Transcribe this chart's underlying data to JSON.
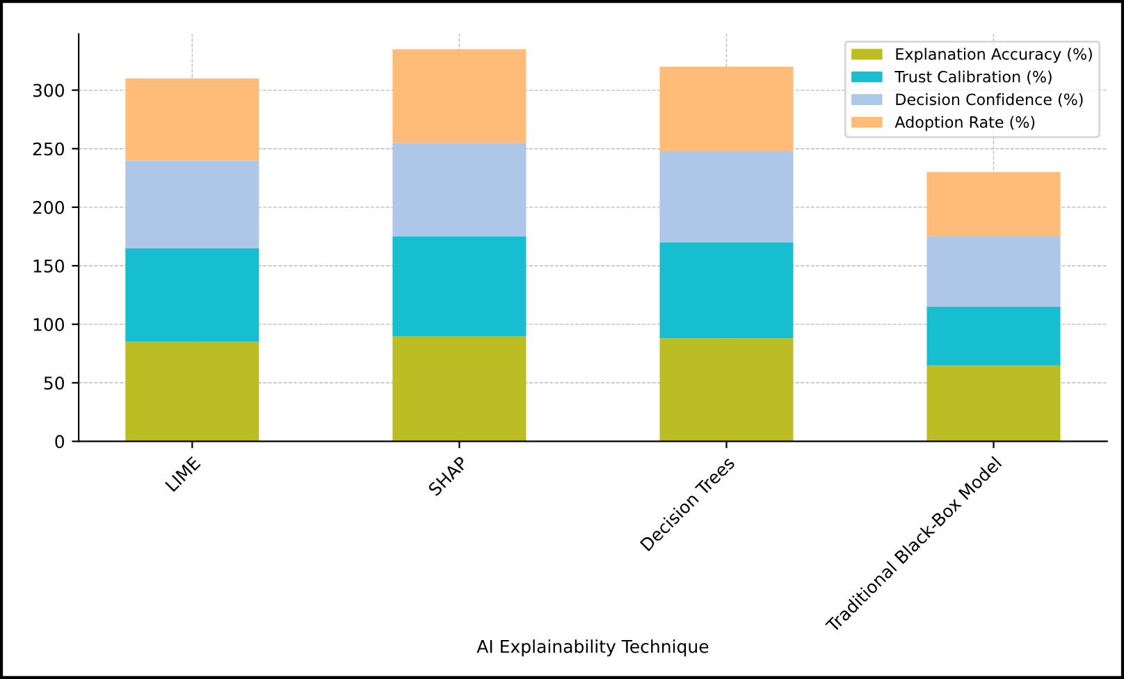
{
  "chart_data": {
    "type": "bar",
    "stacked": true,
    "xlabel": "AI Explainability Technique",
    "categories": [
      "LIME",
      "SHAP",
      "Decision Trees",
      "Traditional Black-Box Model"
    ],
    "series": [
      {
        "name": "Explanation Accuracy (%)",
        "color": "#bcbd22",
        "values": [
          85,
          90,
          88,
          65
        ]
      },
      {
        "name": "Trust Calibration (%)",
        "color": "#17becf",
        "values": [
          80,
          85,
          82,
          50
        ]
      },
      {
        "name": "Decision Confidence (%)",
        "color": "#aec7e8",
        "values": [
          75,
          80,
          78,
          60
        ]
      },
      {
        "name": "Adoption Rate (%)",
        "color": "#ffbb78",
        "values": [
          70,
          80,
          72,
          55
        ]
      }
    ],
    "ylim": [
      0,
      348
    ],
    "yticks": [
      0,
      50,
      100,
      150,
      200,
      250,
      300
    ],
    "grid": true,
    "legend": "top right"
  }
}
